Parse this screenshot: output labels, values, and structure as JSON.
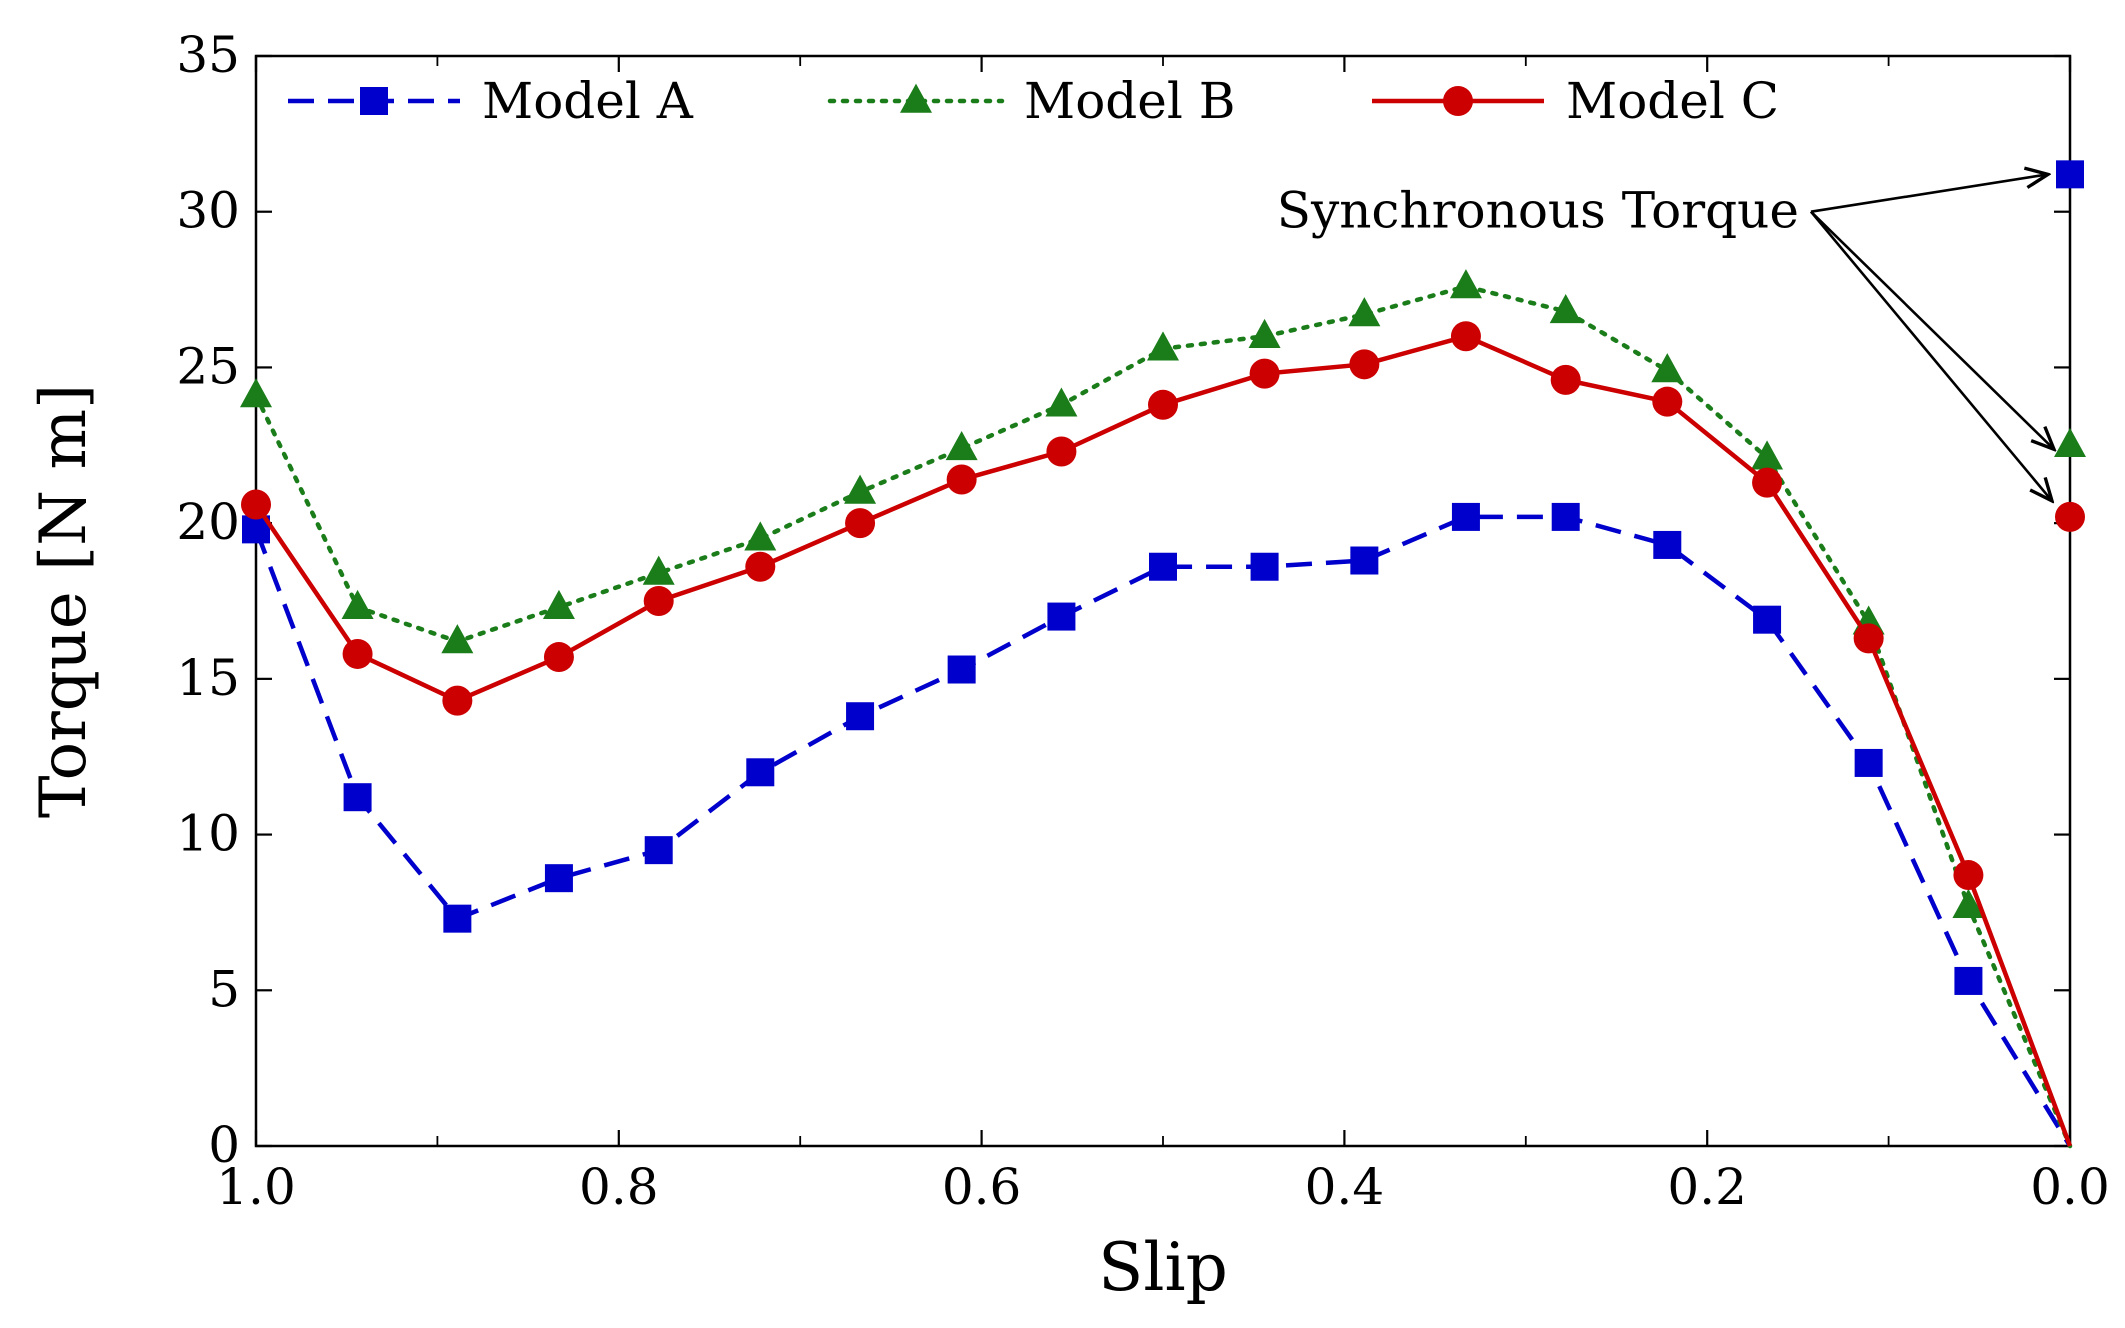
{
  "chart_data": {
    "type": "line",
    "title": "",
    "xlabel": "Slip",
    "ylabel": "Torque [N m]",
    "xlim": [
      1.0,
      0.0
    ],
    "ylim": [
      0,
      35
    ],
    "x_ticks": [
      1.0,
      0.8,
      0.6,
      0.4,
      0.2,
      0.0
    ],
    "x_tick_labels": [
      "1.0",
      "0.8",
      "0.6",
      "0.4",
      "0.2",
      "0.0"
    ],
    "x_minor_ticks": [
      0.9,
      0.7,
      0.5,
      0.3,
      0.1
    ],
    "y_ticks": [
      0,
      5,
      10,
      15,
      20,
      25,
      30,
      35
    ],
    "y_tick_labels": [
      "0",
      "5",
      "10",
      "15",
      "20",
      "25",
      "30",
      "35"
    ],
    "grid": false,
    "legend_position": "top",
    "x": [
      1.0,
      0.944,
      0.889,
      0.833,
      0.778,
      0.722,
      0.667,
      0.611,
      0.556,
      0.5,
      0.444,
      0.389,
      0.333,
      0.278,
      0.222,
      0.167,
      0.111,
      0.056,
      0.0
    ],
    "series": [
      {
        "name": "Model A",
        "color": "#0000cc",
        "line_style": "dashed",
        "marker": "square",
        "values": [
          19.8,
          11.2,
          7.3,
          8.6,
          9.5,
          12.0,
          13.8,
          15.3,
          17.0,
          18.6,
          18.6,
          18.8,
          20.2,
          20.2,
          19.3,
          16.9,
          12.3,
          5.3,
          0.0
        ]
      },
      {
        "name": "Model B",
        "color": "#1a7d1a",
        "line_style": "dotted",
        "marker": "triangle",
        "values": [
          24.1,
          17.3,
          16.2,
          17.3,
          18.4,
          19.5,
          21.0,
          22.4,
          23.8,
          25.6,
          26.0,
          26.7,
          27.6,
          26.8,
          24.9,
          22.1,
          16.8,
          7.7,
          0.0
        ]
      },
      {
        "name": "Model C",
        "color": "#cc0000",
        "line_style": "solid",
        "marker": "circle",
        "values": [
          20.6,
          15.8,
          14.3,
          15.7,
          17.5,
          18.6,
          20.0,
          21.4,
          22.3,
          23.8,
          24.8,
          25.1,
          26.0,
          24.6,
          23.9,
          21.3,
          16.3,
          8.7,
          0.0
        ]
      }
    ],
    "synchronous_points": [
      {
        "series": "Model A",
        "x": 0.0,
        "y": 31.2
      },
      {
        "series": "Model B",
        "x": 0.0,
        "y": 22.5
      },
      {
        "series": "Model C",
        "x": 0.0,
        "y": 20.2
      }
    ],
    "annotation": {
      "text": "Synchronous Torque",
      "anchor_x": 0.145,
      "anchor_y": 30.0
    }
  }
}
